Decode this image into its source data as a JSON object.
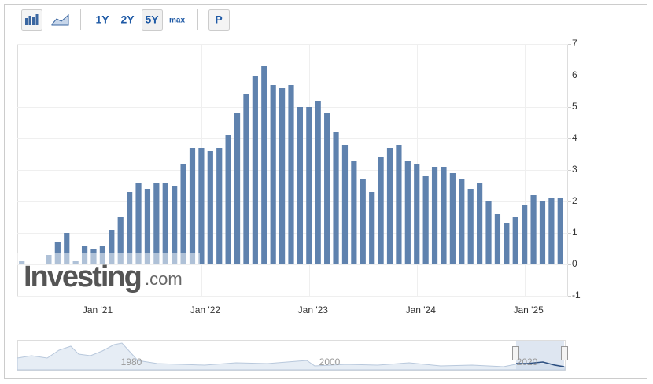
{
  "toolbar": {
    "buttons": [
      "1Y",
      "2Y",
      "5Y",
      "max",
      "P"
    ]
  },
  "watermark": {
    "brand": "Investing",
    "suffix": ".com"
  },
  "navigator": {
    "labels": [
      "1980",
      "2000",
      "2020"
    ]
  },
  "chart_data": {
    "type": "bar",
    "categories": [
      null,
      null,
      null,
      null,
      null,
      null,
      null,
      null,
      "Jan '21",
      null,
      null,
      null,
      null,
      null,
      null,
      null,
      null,
      null,
      null,
      null,
      "Jan '22",
      null,
      null,
      null,
      null,
      null,
      null,
      null,
      null,
      null,
      null,
      null,
      "Jan '23",
      null,
      null,
      null,
      null,
      null,
      null,
      null,
      null,
      null,
      null,
      null,
      "Jan '24",
      null,
      null,
      null,
      null,
      null,
      null,
      null,
      null,
      null,
      null,
      null,
      "Jan '25",
      null,
      null,
      null,
      null
    ],
    "values": [
      0.1,
      0,
      0,
      0.3,
      0.7,
      1.0,
      0.1,
      0.6,
      0.5,
      0.6,
      1.1,
      1.5,
      2.3,
      2.6,
      2.4,
      2.6,
      2.6,
      2.5,
      3.2,
      3.7,
      3.7,
      3.6,
      3.7,
      4.1,
      4.8,
      5.4,
      6.0,
      6.3,
      5.7,
      5.6,
      5.7,
      5.0,
      5.0,
      5.2,
      4.8,
      4.2,
      3.8,
      3.3,
      2.7,
      2.3,
      3.4,
      3.7,
      3.8,
      3.3,
      3.2,
      2.8,
      3.1,
      3.1,
      2.9,
      2.7,
      2.4,
      2.6,
      2.0,
      1.6,
      1.3,
      1.5,
      1.9,
      2.2,
      2.0,
      2.1,
      2.1
    ],
    "color": "#5f82ae",
    "ylim": [
      -1,
      7
    ],
    "yticks": [
      -1,
      0,
      1,
      2,
      3,
      4,
      5,
      6,
      7
    ],
    "grid": true
  }
}
